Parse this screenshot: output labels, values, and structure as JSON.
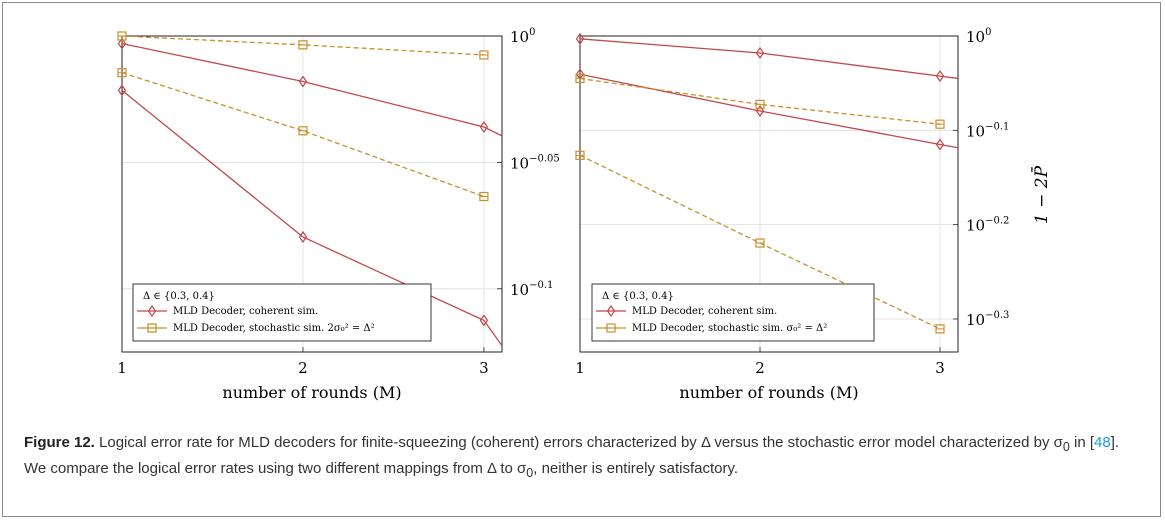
{
  "figure": {
    "caption": {
      "label": "Figure 12.",
      "text_a": " Logical error rate for MLD decoders for finite-squeezing (coherent) errors characterized by Δ versus the stochastic error model characterized by σ",
      "sub_zero_a": "0",
      "text_b": " in [",
      "ref": "48",
      "text_c": "]. We compare the logical error rates using two different mappings from Δ to σ",
      "sub_zero_b": "0",
      "text_d": ", neither is entirely satisfactory."
    },
    "shared_ylabel": "1 − 2P̄"
  },
  "colors": {
    "coherent": "#c0474b",
    "stochastic": "#c8902a",
    "grid": "#dddddd",
    "axis": "#222222"
  },
  "chart_data": [
    {
      "type": "line",
      "scale_y": "log10",
      "xlabel": "number of rounds (M)",
      "x": [
        1,
        2,
        3
      ],
      "xlim": [
        1,
        3.1
      ],
      "ylim_log10": [
        -0.125,
        0.0
      ],
      "yticks": [
        {
          "log10": 0,
          "label": "10",
          "exp": "0"
        },
        {
          "log10": -0.05,
          "label": "10",
          "exp": "−0.05"
        },
        {
          "log10": -0.1,
          "label": "10",
          "exp": "−0.1"
        }
      ],
      "grid": true,
      "legend": {
        "title": "Δ ∈ {0.3, 0.4}",
        "placement": "bottom-left",
        "entries": [
          "MLD Decoder, coherent sim.",
          "MLD Decoder, stochastic sim. 2σ₀² = Δ²"
        ]
      },
      "series": [
        {
          "group": "coherent",
          "marker": "diamond",
          "dash": false,
          "log10": [
            -0.003,
            -0.018,
            -0.036
          ],
          "extend_log10": -0.0395
        },
        {
          "group": "coherent",
          "marker": "diamond",
          "dash": false,
          "log10": [
            -0.0215,
            -0.0795,
            -0.1125
          ],
          "extend_log10": -0.1225
        },
        {
          "group": "stochastic",
          "marker": "square",
          "dash": true,
          "log10": [
            0.0,
            -0.0035,
            -0.0075
          ]
        },
        {
          "group": "stochastic",
          "marker": "square",
          "dash": true,
          "log10": [
            -0.0145,
            -0.0375,
            -0.0635
          ]
        }
      ]
    },
    {
      "type": "line",
      "scale_y": "log10",
      "xlabel": "number of rounds (M)",
      "x": [
        1,
        2,
        3
      ],
      "xlim": [
        1,
        3.1
      ],
      "ylim_log10": [
        -0.335,
        0.0
      ],
      "yticks": [
        {
          "log10": 0,
          "label": "10",
          "exp": "0"
        },
        {
          "log10": -0.1,
          "label": "10",
          "exp": "−0.1"
        },
        {
          "log10": -0.2,
          "label": "10",
          "exp": "−0.2"
        },
        {
          "log10": -0.3,
          "label": "10",
          "exp": "−0.3"
        }
      ],
      "grid": true,
      "legend": {
        "title": "Δ ∈ {0.3, 0.4}",
        "placement": "bottom-left",
        "entries": [
          "MLD Decoder, coherent sim.",
          "MLD Decoder, stochastic sim. σ₀² = Δ²"
        ]
      },
      "series": [
        {
          "group": "coherent",
          "marker": "diamond",
          "dash": false,
          "log10": [
            -0.003,
            -0.018,
            -0.0425
          ],
          "extend_log10": -0.045
        },
        {
          "group": "coherent",
          "marker": "diamond",
          "dash": false,
          "log10": [
            -0.0405,
            -0.0795,
            -0.115
          ],
          "extend_log10": -0.1185
        },
        {
          "group": "stochastic",
          "marker": "square",
          "dash": true,
          "log10": [
            -0.045,
            -0.0725,
            -0.0935
          ]
        },
        {
          "group": "stochastic",
          "marker": "square",
          "dash": true,
          "log10": [
            -0.1265,
            -0.2195,
            -0.3105
          ]
        }
      ]
    }
  ]
}
